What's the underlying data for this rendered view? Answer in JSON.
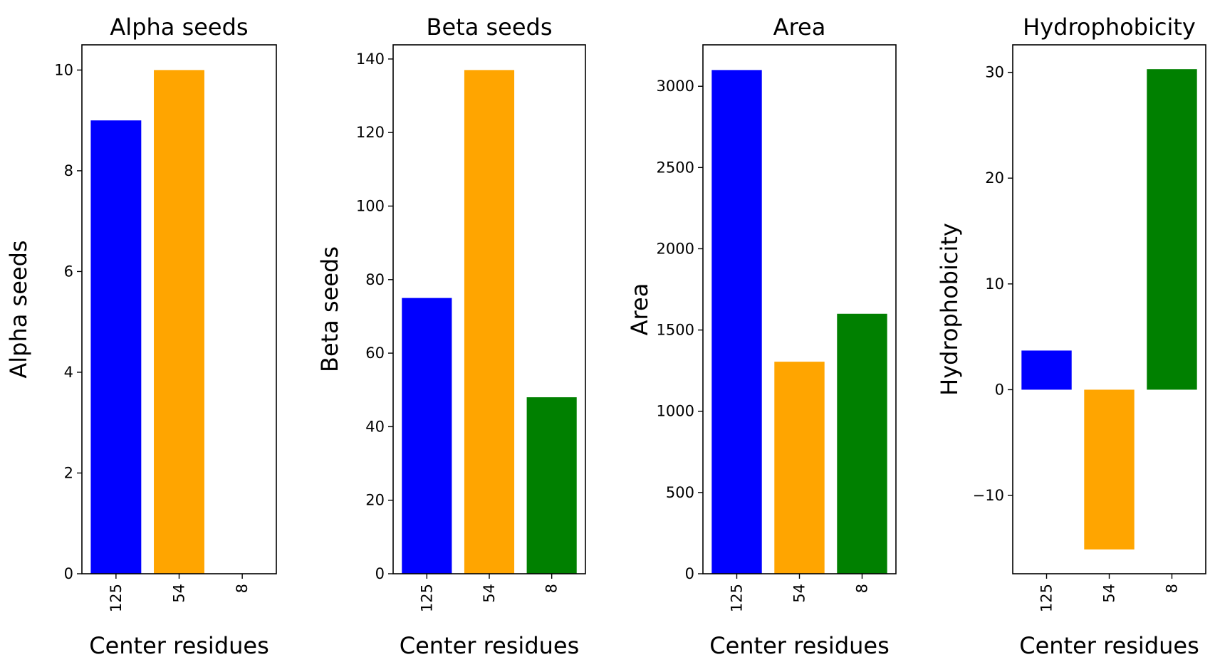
{
  "chart_data": [
    {
      "type": "bar",
      "title": "Alpha seeds",
      "xlabel": "Center residues",
      "ylabel": "Alpha seeds",
      "categories": [
        "125",
        "54",
        "8"
      ],
      "values": [
        9,
        10,
        0
      ],
      "colors": [
        "#0000ff",
        "#ffa500",
        "#008000"
      ],
      "ylim": [
        0,
        10.5
      ],
      "yticks": [
        0,
        2,
        4,
        6,
        8,
        10
      ],
      "ytick_labels": [
        "0",
        "2",
        "4",
        "6",
        "8",
        "10"
      ],
      "grid": false
    },
    {
      "type": "bar",
      "title": "Beta seeds",
      "xlabel": "Center residues",
      "ylabel": "Beta seeds",
      "categories": [
        "125",
        "54",
        "8"
      ],
      "values": [
        75,
        137,
        48
      ],
      "colors": [
        "#0000ff",
        "#ffa500",
        "#008000"
      ],
      "ylim": [
        0,
        143.85
      ],
      "yticks": [
        0,
        20,
        40,
        60,
        80,
        100,
        120,
        140
      ],
      "ytick_labels": [
        "0",
        "20",
        "40",
        "60",
        "80",
        "100",
        "120",
        "140"
      ],
      "grid": false
    },
    {
      "type": "bar",
      "title": "Area",
      "xlabel": "Center residues",
      "ylabel": "Area",
      "categories": [
        "125",
        "54",
        "8"
      ],
      "values": [
        3100,
        1305,
        1600
      ],
      "colors": [
        "#0000ff",
        "#ffa500",
        "#008000"
      ],
      "ylim": [
        0,
        3255
      ],
      "yticks": [
        0,
        500,
        1000,
        1500,
        2000,
        2500,
        3000
      ],
      "ytick_labels": [
        "0",
        "500",
        "1000",
        "1500",
        "2000",
        "2500",
        "3000"
      ],
      "grid": false
    },
    {
      "type": "bar",
      "title": "Hydrophobicity",
      "xlabel": "Center residues",
      "ylabel": "Hydrophobicity",
      "categories": [
        "125",
        "54",
        "8"
      ],
      "values": [
        3.7,
        -15.1,
        30.3
      ],
      "colors": [
        "#0000ff",
        "#ffa500",
        "#008000"
      ],
      "ylim": [
        -17.4,
        32.6
      ],
      "yticks": [
        -10,
        0,
        10,
        20,
        30
      ],
      "ytick_labels": [
        "−10",
        "0",
        "10",
        "20",
        "30"
      ],
      "grid": false
    }
  ]
}
